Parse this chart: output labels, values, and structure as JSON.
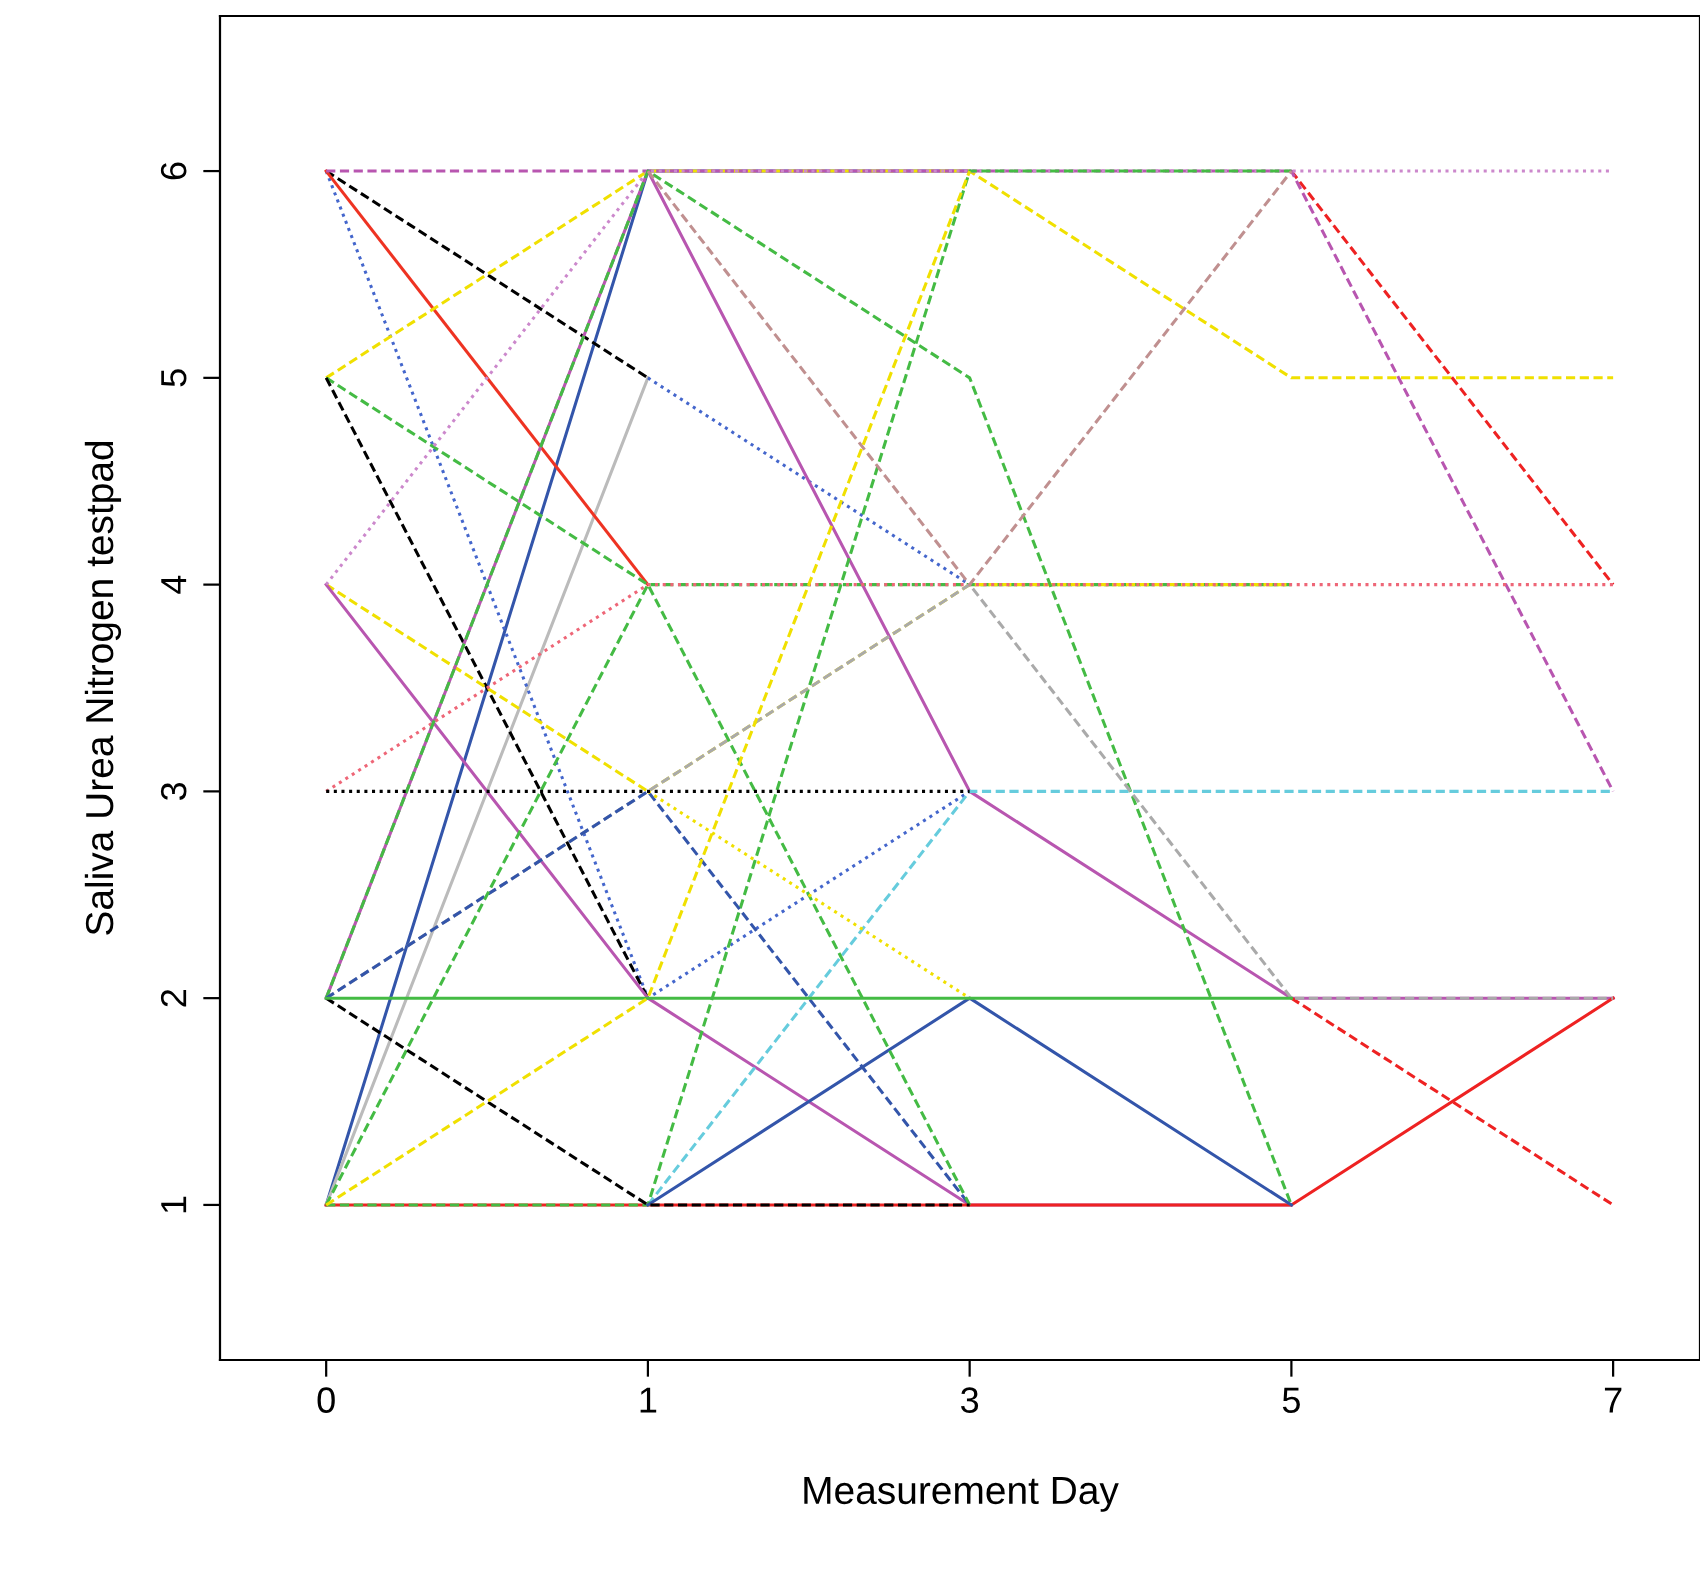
{
  "chart_data": {
    "type": "line",
    "xlabel": "Measurement Day",
    "ylabel": "Saliva Urea Nitrogen testpad",
    "categories": [
      "0",
      "1",
      "3",
      "5",
      "7"
    ],
    "ylim": [
      0.25,
      6.75
    ],
    "yticks": [
      1,
      2,
      3,
      4,
      5,
      6
    ],
    "grid": false,
    "legend": false,
    "marker": "none",
    "series": [
      {
        "color": "#3355aa",
        "line_style": "solid",
        "values": [
          1,
          6,
          6,
          null,
          null
        ]
      },
      {
        "color": "#bbbbbb",
        "line_style": "solid",
        "values": [
          1,
          5,
          null,
          null,
          null
        ]
      },
      {
        "color": "#000000",
        "line_style": "dashed",
        "values": [
          6,
          5,
          null,
          null,
          null
        ]
      },
      {
        "color": "#4466cc",
        "line_style": "dotted",
        "values": [
          6,
          2,
          3,
          null,
          null
        ]
      },
      {
        "color": "#4466cc",
        "line_style": "dotted",
        "values": [
          null,
          5,
          4,
          null,
          null
        ]
      },
      {
        "color": "#ee3322",
        "line_style": "solid",
        "values": [
          6,
          4,
          null,
          null,
          null
        ]
      },
      {
        "color": "#f0e000",
        "line_style": "dashed",
        "values": [
          5,
          6,
          6,
          5,
          5
        ]
      },
      {
        "color": "#44bb44",
        "line_style": "dashed",
        "values": [
          5,
          4,
          4,
          4,
          null
        ]
      },
      {
        "color": "#000000",
        "line_style": "dashed",
        "values": [
          5,
          2,
          null,
          null,
          null
        ]
      },
      {
        "color": "#f0e000",
        "line_style": "dashed",
        "values": [
          4,
          3,
          4,
          4,
          null
        ]
      },
      {
        "color": "#b856b0",
        "line_style": "solid",
        "values": [
          4,
          2,
          1,
          1,
          null
        ]
      },
      {
        "color": "#b856b0",
        "line_style": "solid",
        "values": [
          2,
          6,
          3,
          2,
          2
        ]
      },
      {
        "color": "#ee2222",
        "line_style": "dashed",
        "values": [
          null,
          null,
          null,
          6,
          4
        ]
      },
      {
        "color": "#ee2222",
        "line_style": "dashed",
        "values": [
          null,
          null,
          null,
          2,
          1
        ]
      },
      {
        "color": "#ee2222",
        "line_style": "solid",
        "values": [
          1,
          1,
          1,
          1,
          2
        ]
      },
      {
        "color": "#b856b0",
        "line_style": "dashed",
        "values": [
          6,
          6,
          6,
          6,
          3
        ]
      },
      {
        "color": "#ee6677",
        "line_style": "dotted",
        "values": [
          3,
          4,
          4,
          4,
          4
        ]
      },
      {
        "color": "#cc88cc",
        "line_style": "dotted",
        "values": [
          4,
          6,
          6,
          6,
          6
        ]
      },
      {
        "color": "#66ccdd",
        "line_style": "dashed",
        "values": [
          null,
          1,
          3,
          3,
          3
        ]
      },
      {
        "color": "#44bb44",
        "line_style": "dashed",
        "values": [
          1,
          1,
          6,
          6,
          null
        ]
      },
      {
        "color": "#44bb44",
        "line_style": "dashed",
        "values": [
          2,
          6,
          5,
          1,
          null
        ]
      },
      {
        "color": "#aaaaaa",
        "line_style": "dashed",
        "values": [
          2,
          3,
          4,
          2,
          2
        ]
      },
      {
        "color": "#c09090",
        "line_style": "dashed",
        "values": [
          null,
          6,
          4,
          6,
          null
        ]
      },
      {
        "color": "#3355aa",
        "line_style": "solid",
        "values": [
          null,
          1,
          2,
          1,
          null
        ]
      },
      {
        "color": "#3355aa",
        "line_style": "dashed",
        "values": [
          2,
          3,
          1,
          null,
          null
        ]
      },
      {
        "color": "#44bb44",
        "line_style": "dashed",
        "values": [
          1,
          4,
          1,
          null,
          null
        ]
      },
      {
        "color": "#f0e000",
        "line_style": "dotted",
        "values": [
          null,
          3,
          2,
          null,
          null
        ]
      },
      {
        "color": "#000000",
        "line_style": "dashed",
        "values": [
          2,
          1,
          1,
          null,
          null
        ]
      },
      {
        "color": "#44bb44",
        "line_style": "solid",
        "values": [
          2,
          2,
          2,
          2,
          null
        ]
      },
      {
        "color": "#000000",
        "line_style": "dotted",
        "values": [
          3,
          3,
          3,
          null,
          null
        ]
      },
      {
        "color": "#f0e000",
        "line_style": "dashed",
        "values": [
          1,
          2,
          6,
          null,
          null
        ]
      }
    ]
  }
}
